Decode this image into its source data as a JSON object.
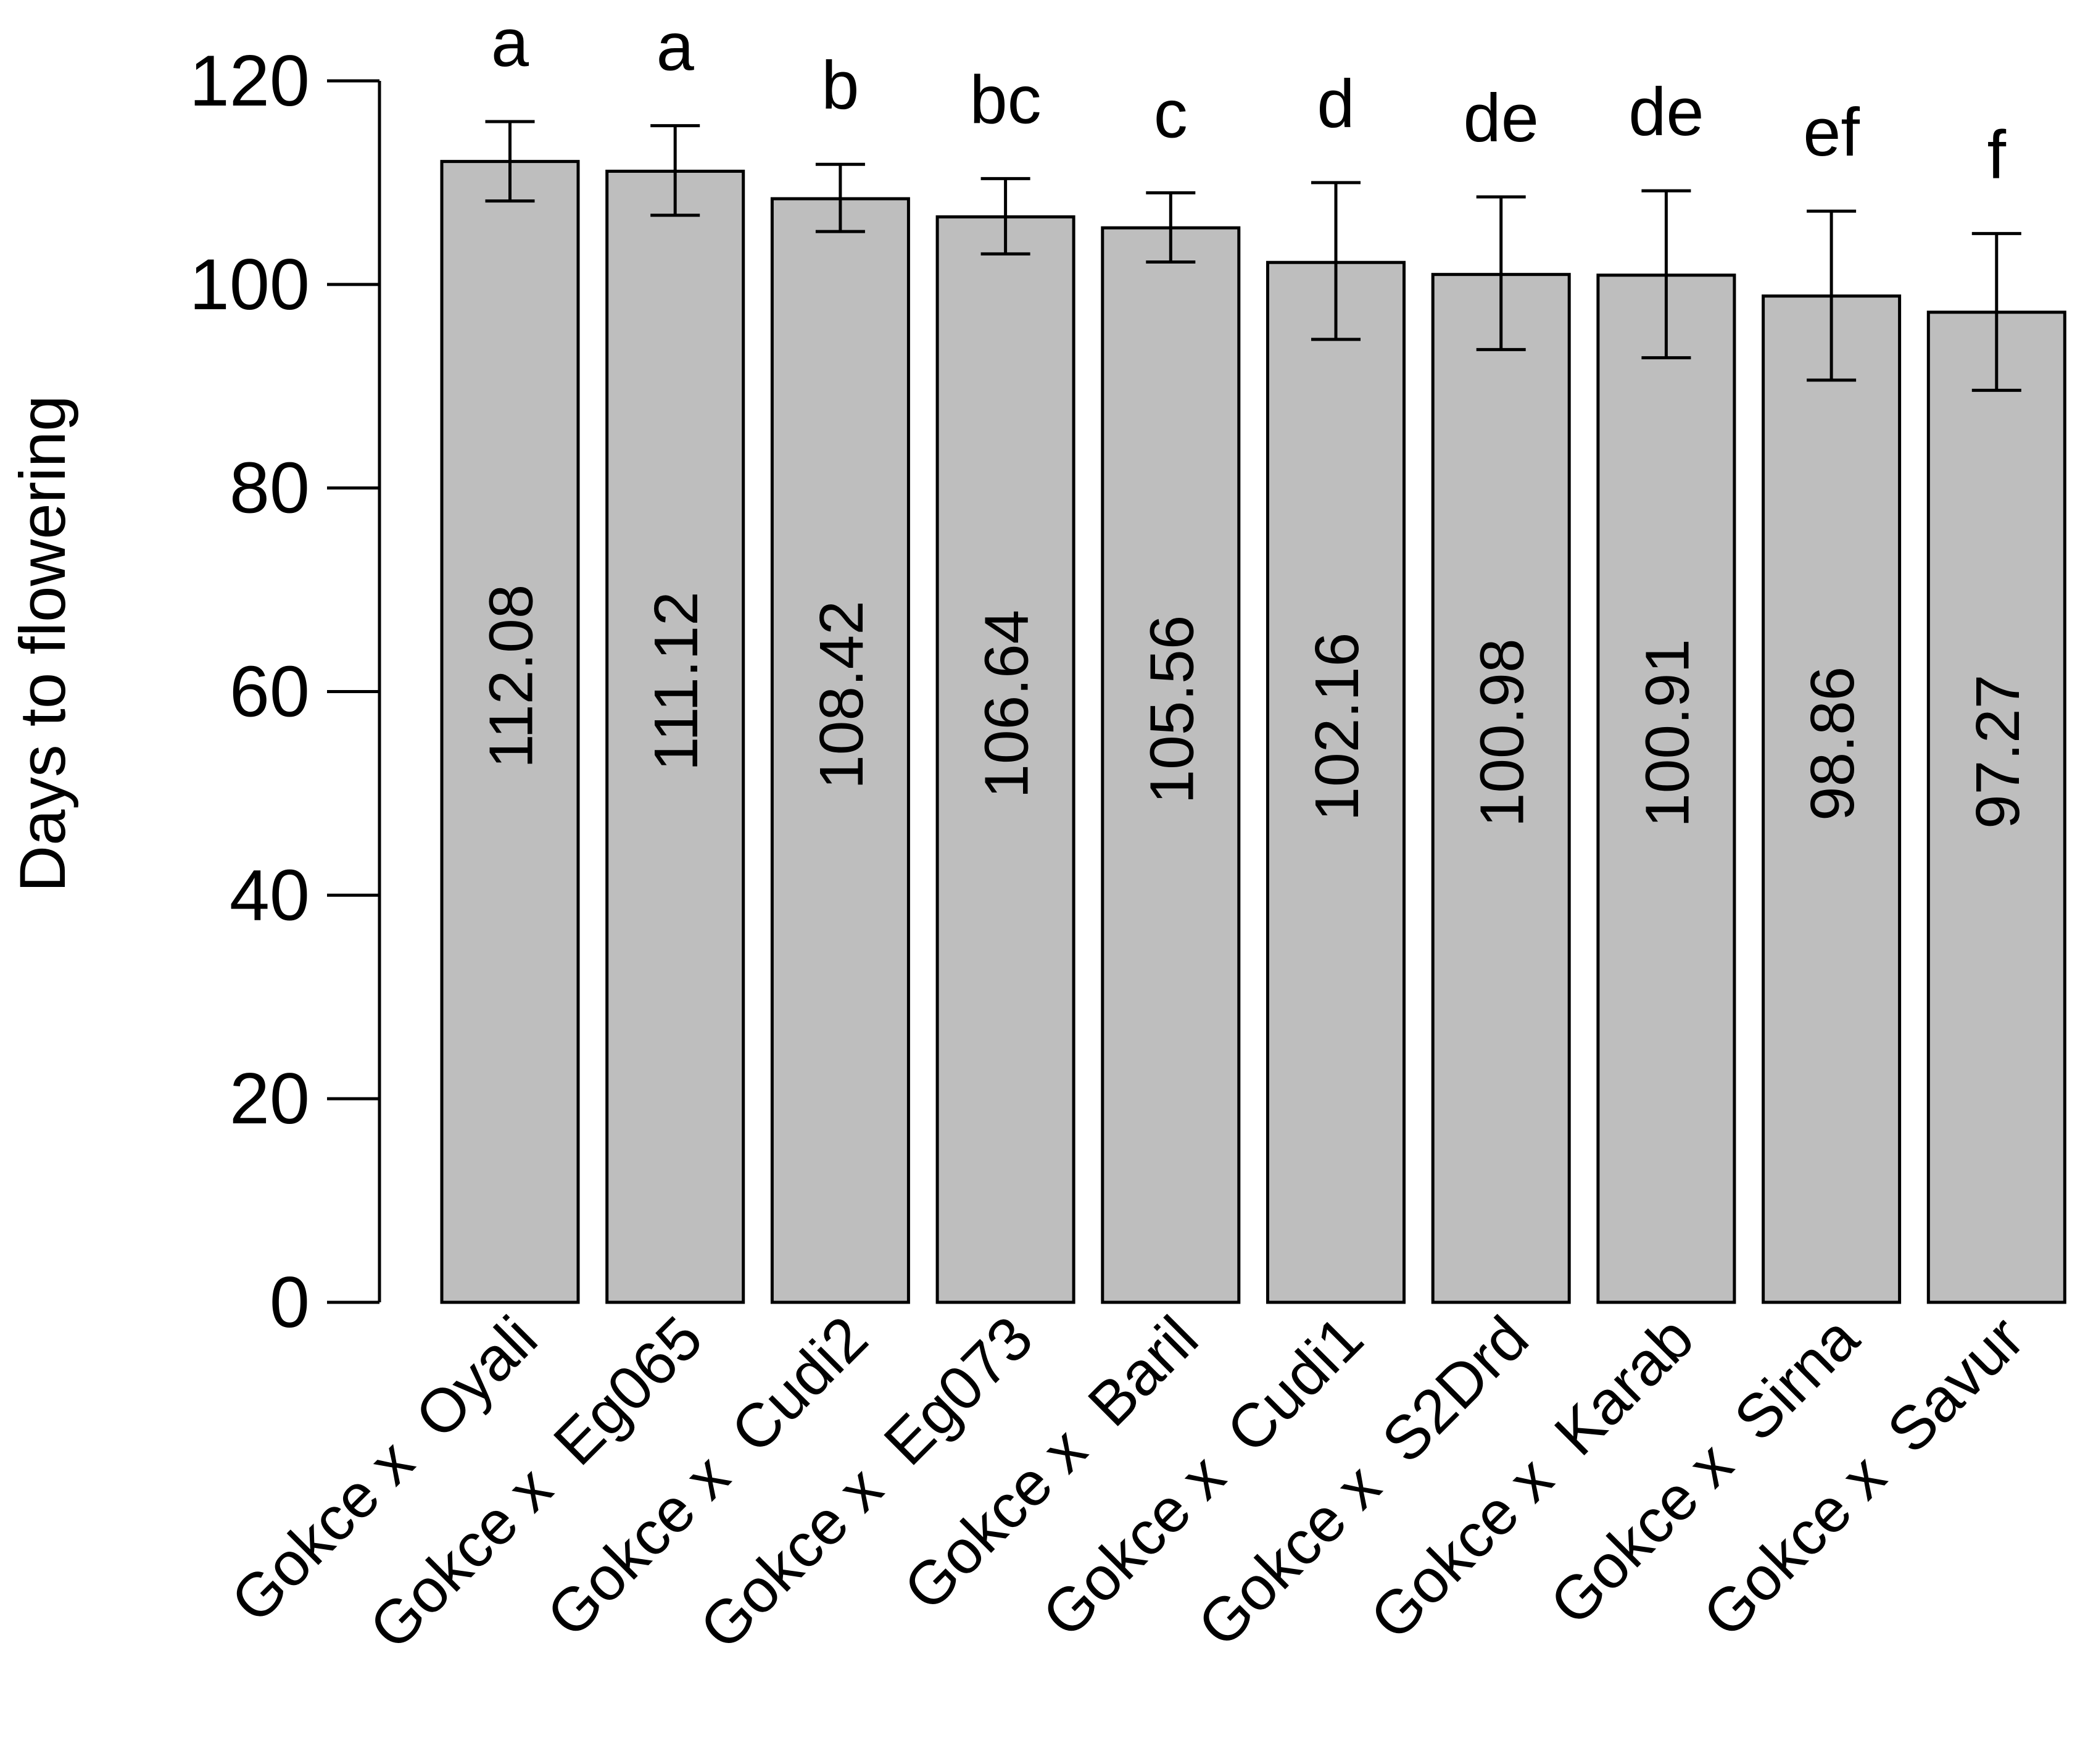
{
  "chart_data": {
    "type": "bar",
    "title": "",
    "xlabel": "",
    "ylabel": "Days to flowering",
    "ylim": [
      0,
      120
    ],
    "yticks": [
      0,
      20,
      40,
      60,
      80,
      100,
      120
    ],
    "grid": false,
    "legend": "none",
    "bar_color": "#bebebe",
    "categories": [
      "Gokce x  Oyali",
      "Gokce x  Eg065",
      "Gokce x  Cudi2",
      "Gokce x  Eg073",
      "Gokce x  Baril",
      "Gokce x  Cudi1",
      "Gokce x  S2Drd",
      "Gokce x  Karab",
      "Gokce x  Sirna",
      "Gokce x  Savur"
    ],
    "values": [
      112.08,
      111.12,
      108.42,
      106.64,
      105.56,
      102.16,
      100.98,
      100.91,
      98.86,
      97.27
    ],
    "value_labels": [
      "112.08",
      "111.12",
      "108.42",
      "106.64",
      "105.56",
      "102.16",
      "100.98",
      "100.91",
      "98.86",
      "97.27"
    ],
    "error_upper": [
      116.0,
      115.6,
      111.8,
      110.4,
      109.0,
      110.0,
      108.6,
      109.2,
      107.2,
      105.0
    ],
    "error_lower": [
      108.2,
      106.8,
      105.2,
      103.0,
      102.2,
      94.6,
      93.6,
      92.8,
      90.6,
      89.6
    ],
    "significance_letters": [
      "a",
      "a",
      "b",
      "bc",
      "c",
      "d",
      "de",
      "de",
      "ef",
      "f"
    ]
  }
}
